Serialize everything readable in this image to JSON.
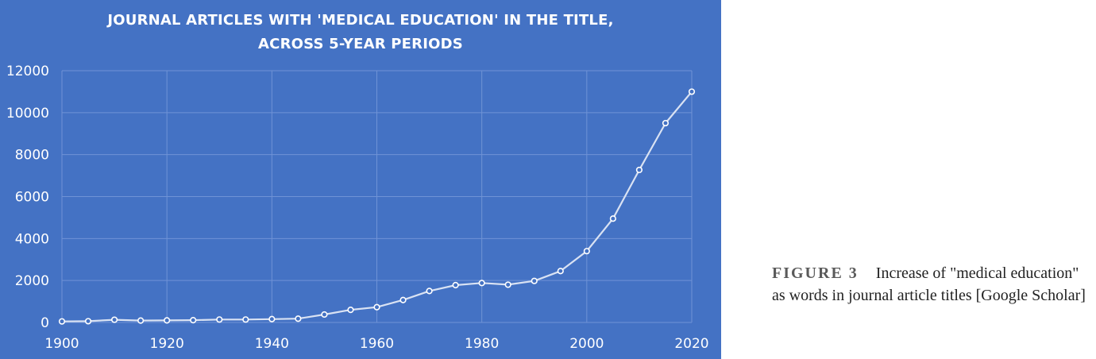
{
  "chart_data": {
    "type": "line",
    "title_lines": [
      "JOURNAL ARTICLES WITH 'MEDICAL EDUCATION' IN THE TITLE,",
      "ACROSS 5-YEAR PERIODS"
    ],
    "xlabel": "",
    "ylabel": "",
    "xlim": [
      1900,
      2020
    ],
    "ylim": [
      0,
      12000
    ],
    "x_ticks": [
      1900,
      1920,
      1940,
      1960,
      1980,
      2000,
      2020
    ],
    "y_ticks": [
      0,
      2000,
      4000,
      6000,
      8000,
      10000,
      12000
    ],
    "grid": true,
    "x": [
      1900,
      1905,
      1910,
      1915,
      1920,
      1925,
      1930,
      1935,
      1940,
      1945,
      1950,
      1955,
      1960,
      1965,
      1970,
      1975,
      1980,
      1985,
      1990,
      1995,
      2000,
      2005,
      2010,
      2015,
      2020
    ],
    "y": [
      50,
      60,
      130,
      90,
      100,
      110,
      140,
      140,
      160,
      180,
      380,
      600,
      730,
      1070,
      1500,
      1780,
      1880,
      1800,
      1980,
      2450,
      3400,
      4950,
      7270,
      9500,
      11000
    ],
    "colors": {
      "background": "#4472C4",
      "line": "#D9E2F3",
      "marker_fill": "#4472C4",
      "marker_stroke": "#ffffff",
      "grid": "#6F93D6",
      "text": "#ffffff"
    }
  },
  "caption": {
    "label": "FIGURE 3",
    "text": "Increase of \"medical education\" as words in journal article titles [Google Scholar]"
  }
}
